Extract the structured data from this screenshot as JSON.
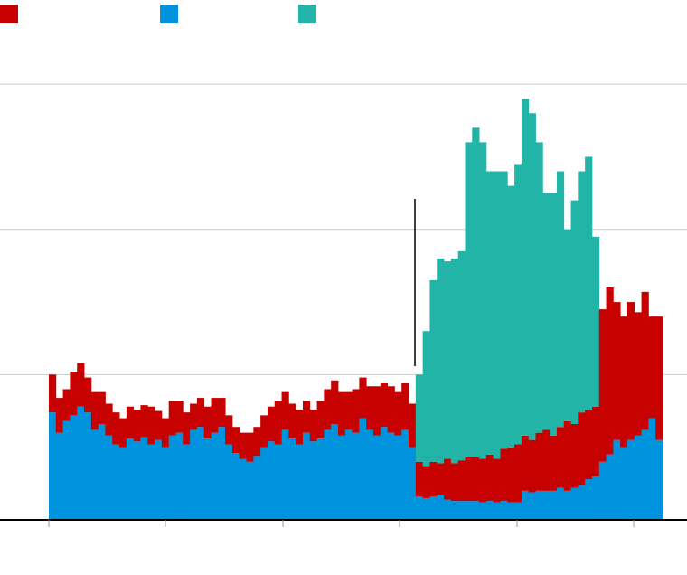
{
  "chart_data": {
    "type": "stacked-bar",
    "categories": [
      null,
      null,
      null,
      null,
      null,
      null,
      null,
      null,
      null,
      null,
      null,
      null,
      null,
      null,
      null,
      null,
      null,
      null,
      null,
      null,
      null,
      null,
      null,
      null,
      null,
      null,
      null,
      null,
      null,
      null,
      null,
      null,
      null,
      null,
      null,
      null,
      null,
      null,
      null,
      null,
      null,
      null,
      null,
      null,
      null,
      null,
      null,
      null,
      null,
      null,
      null,
      null,
      null,
      null,
      null,
      null,
      null,
      null,
      null,
      null,
      null,
      null,
      null,
      null,
      null,
      null,
      null,
      null,
      null,
      null,
      null,
      null,
      null,
      null,
      null,
      null,
      null,
      null,
      null,
      null,
      null,
      null,
      null,
      null,
      null,
      null,
      null
    ],
    "series": [
      {
        "color": "#c70000",
        "values": [
          0.26,
          0.24,
          0.22,
          0.3,
          0.3,
          0.24,
          0.26,
          0.22,
          0.22,
          0.22,
          0.2,
          0.22,
          0.22,
          0.22,
          0.26,
          0.2,
          0.2,
          0.24,
          0.22,
          0.22,
          0.18,
          0.2,
          0.22,
          0.24,
          0.2,
          0.2,
          0.18,
          0.18,
          0.2,
          0.2,
          0.22,
          0.24,
          0.3,
          0.26,
          0.24,
          0.24,
          0.22,
          0.22,
          0.26,
          0.28,
          0.3,
          0.3,
          0.26,
          0.3,
          0.28,
          0.3,
          0.34,
          0.3,
          0.32,
          0.3,
          0.32,
          0.3,
          0.24,
          0.22,
          0.24,
          0.22,
          0.28,
          0.26,
          0.28,
          0.3,
          0.3,
          0.3,
          0.32,
          0.3,
          0.36,
          0.38,
          0.4,
          0.38,
          0.36,
          0.4,
          0.42,
          0.38,
          0.42,
          0.48,
          0.44,
          0.5,
          0.48,
          0.48,
          1.05,
          1.15,
          0.95,
          0.9,
          0.95,
          0.85,
          0.95,
          0.7,
          0.85
        ]
      },
      {
        "color": "#0093dd",
        "values": [
          0.74,
          0.6,
          0.68,
          0.72,
          0.78,
          0.74,
          0.62,
          0.66,
          0.58,
          0.52,
          0.5,
          0.56,
          0.54,
          0.57,
          0.52,
          0.55,
          0.5,
          0.58,
          0.6,
          0.52,
          0.62,
          0.64,
          0.56,
          0.6,
          0.64,
          0.52,
          0.46,
          0.42,
          0.4,
          0.44,
          0.5,
          0.54,
          0.52,
          0.62,
          0.56,
          0.52,
          0.6,
          0.54,
          0.56,
          0.62,
          0.66,
          0.58,
          0.62,
          0.6,
          0.7,
          0.62,
          0.58,
          0.64,
          0.6,
          0.58,
          0.62,
          0.5,
          0.16,
          0.15,
          0.16,
          0.17,
          0.14,
          0.13,
          0.13,
          0.13,
          0.13,
          0.12,
          0.13,
          0.12,
          0.13,
          0.12,
          0.12,
          0.2,
          0.19,
          0.2,
          0.2,
          0.2,
          0.22,
          0.2,
          0.22,
          0.24,
          0.28,
          0.3,
          0.4,
          0.45,
          0.55,
          0.5,
          0.55,
          0.58,
          0.62,
          0.7,
          0.55
        ]
      },
      {
        "color": "#22b4a6",
        "values": [
          null,
          null,
          null,
          null,
          null,
          null,
          null,
          null,
          null,
          null,
          null,
          null,
          null,
          null,
          null,
          null,
          null,
          null,
          null,
          null,
          null,
          null,
          null,
          null,
          null,
          null,
          null,
          null,
          null,
          null,
          null,
          null,
          null,
          null,
          null,
          null,
          null,
          null,
          null,
          null,
          null,
          null,
          null,
          null,
          null,
          null,
          null,
          null,
          null,
          null,
          null,
          null,
          0.6,
          0.93,
          1.25,
          1.41,
          1.36,
          1.41,
          1.44,
          2.17,
          2.27,
          2.18,
          1.95,
          1.98,
          1.91,
          1.8,
          1.93,
          2.32,
          2.25,
          2.0,
          1.63,
          1.67,
          1.76,
          1.32,
          1.54,
          1.66,
          1.74,
          1.17,
          null,
          null,
          null,
          null,
          null,
          null,
          null,
          null,
          null
        ]
      }
    ],
    "stack_order": [
      1,
      0,
      2
    ],
    "ylim": [
      0,
      3.58
    ],
    "yticks": [
      1,
      2,
      3
    ],
    "grid": true
  }
}
